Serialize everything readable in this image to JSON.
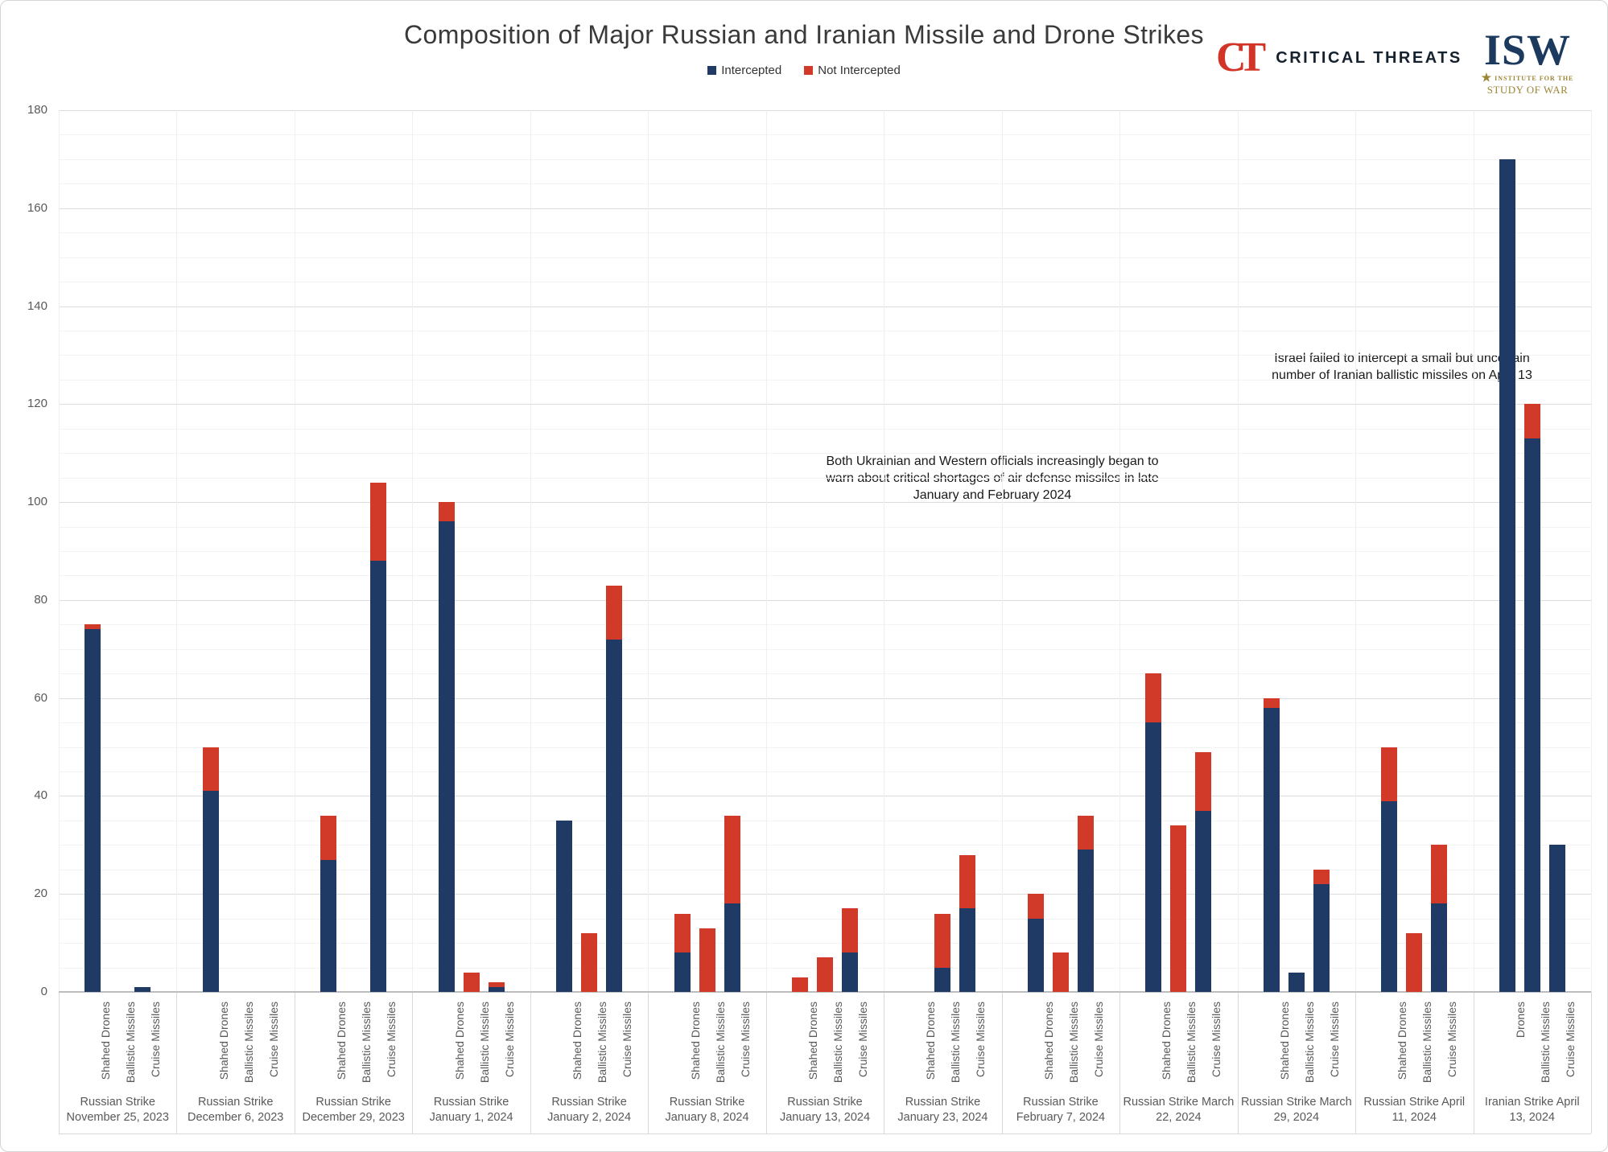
{
  "header": {
    "title": "Composition of Major Russian and Iranian Missile and Drone Strikes"
  },
  "legend": {
    "intercepted_label": "Intercepted",
    "not_intercepted_label": "Not Intercepted"
  },
  "logos": {
    "ct_mark": "CT",
    "ct_text": "CRITICAL THREATS",
    "isw_mark": "ISW",
    "isw_star": "★",
    "isw_sub_line1": "INSTITUTE FOR THE",
    "isw_sub_line2": "STUDY OF WAR"
  },
  "annotations": {
    "air_defense_shortage": "Both Ukrainian and Western officials increasingly began to warn about critical shortages of air defense missiles in late January and February 2024",
    "israel_intercept": "Israel failed to intercept a small but uncertain number of Iranian ballistic missiles on April 13"
  },
  "chart_data": {
    "type": "bar",
    "stacked": true,
    "title": "Composition of Major Russian and Iranian Missile and Drone Strikes",
    "ylim": [
      0,
      180
    ],
    "ytick_step": 20,
    "minor_grid_step": 5,
    "grid": true,
    "legend_position": "top",
    "colors": {
      "intercepted": "#1f3a64",
      "not_intercepted": "#d13a28",
      "gridline_major": "#dcdcdc",
      "gridline_minor": "#f3f3f3",
      "axis_text": "#595959"
    },
    "series_names": [
      "Intercepted",
      "Not Intercepted"
    ],
    "groups": [
      {
        "label": "Russian Strike November 25, 2023",
        "categories": [
          "Shahed Drones",
          "Ballistic Missiles",
          "Cruise Missiles"
        ],
        "intercepted": [
          74,
          0,
          1
        ],
        "not_intercepted": [
          1,
          0,
          0
        ]
      },
      {
        "label": "Russian Strike December 6, 2023",
        "categories": [
          "Shahed Drones",
          "Ballistic Missiles",
          "Cruise Missiles"
        ],
        "intercepted": [
          41,
          0,
          0
        ],
        "not_intercepted": [
          9,
          0,
          0
        ]
      },
      {
        "label": "Russian Strike December 29, 2023",
        "categories": [
          "Shahed Drones",
          "Ballistic Missiles",
          "Cruise Missiles"
        ],
        "intercepted": [
          27,
          0,
          88
        ],
        "not_intercepted": [
          9,
          0,
          16
        ]
      },
      {
        "label": "Russian Strike January 1, 2024",
        "categories": [
          "Shahed Drones",
          "Ballistic Missiles",
          "Cruise Missiles"
        ],
        "intercepted": [
          96,
          0,
          1
        ],
        "not_intercepted": [
          4,
          4,
          1
        ]
      },
      {
        "label": "Russian Strike January 2, 2024",
        "categories": [
          "Shahed Drones",
          "Ballistic Missiles",
          "Cruise Missiles"
        ],
        "intercepted": [
          35,
          0,
          72
        ],
        "not_intercepted": [
          0,
          12,
          11
        ]
      },
      {
        "label": "Russian Strike January 8, 2024",
        "categories": [
          "Shahed Drones",
          "Ballistic Missiles",
          "Cruise Missiles"
        ],
        "intercepted": [
          8,
          0,
          18
        ],
        "not_intercepted": [
          8,
          13,
          18
        ]
      },
      {
        "label": "Russian Strike January 13, 2024",
        "categories": [
          "Shahed Drones",
          "Ballistic Missiles",
          "Cruise Missiles"
        ],
        "intercepted": [
          0,
          0,
          8
        ],
        "not_intercepted": [
          3,
          7,
          9
        ]
      },
      {
        "label": "Russian Strike January 23, 2024",
        "categories": [
          "Shahed Drones",
          "Ballistic Missiles",
          "Cruise Missiles"
        ],
        "intercepted": [
          0,
          5,
          17
        ],
        "not_intercepted": [
          0,
          11,
          11
        ]
      },
      {
        "label": "Russian Strike February 7, 2024",
        "categories": [
          "Shahed Drones",
          "Ballistic Missiles",
          "Cruise Missiles"
        ],
        "intercepted": [
          15,
          0,
          29
        ],
        "not_intercepted": [
          5,
          8,
          7
        ]
      },
      {
        "label": "Russian Strike March 22, 2024",
        "categories": [
          "Shahed Drones",
          "Ballistic Missiles",
          "Cruise Missiles"
        ],
        "intercepted": [
          55,
          0,
          37
        ],
        "not_intercepted": [
          10,
          34,
          12
        ]
      },
      {
        "label": "Russian Strike March 29, 2024",
        "categories": [
          "Shahed Drones",
          "Ballistic Missiles",
          "Cruise Missiles"
        ],
        "intercepted": [
          58,
          4,
          22
        ],
        "not_intercepted": [
          2,
          0,
          3
        ]
      },
      {
        "label": "Russian Strike April 11, 2024",
        "categories": [
          "Shahed Drones",
          "Ballistic Missiles",
          "Cruise Missiles"
        ],
        "intercepted": [
          39,
          0,
          18
        ],
        "not_intercepted": [
          11,
          12,
          12
        ]
      },
      {
        "label": "Iranian Strike April 13, 2024",
        "categories": [
          "Drones",
          "Ballistic Missiles",
          "Cruise Missiles"
        ],
        "intercepted": [
          170,
          113,
          30
        ],
        "not_intercepted": [
          0,
          7,
          0
        ]
      }
    ]
  }
}
